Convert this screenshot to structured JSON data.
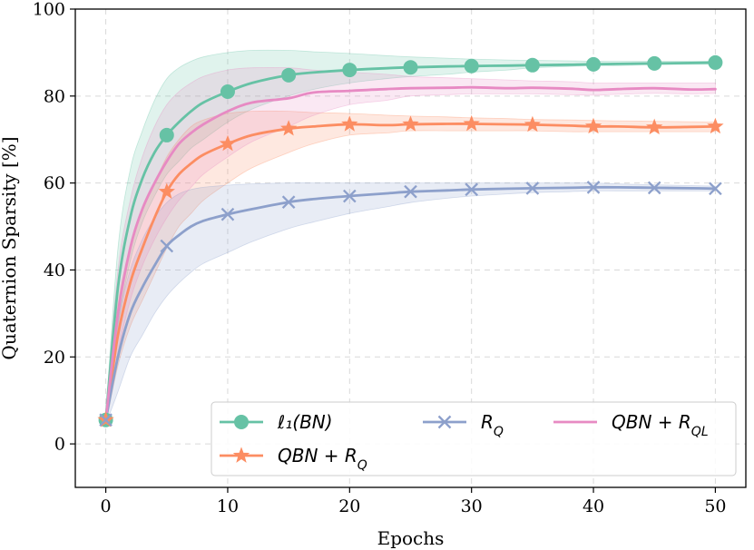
{
  "chart_data": {
    "type": "line",
    "xlabel": "Epochs",
    "ylabel": "Quaternion Sparsity [%]",
    "xlim": [
      -2.5,
      52.5
    ],
    "ylim": [
      -10,
      100
    ],
    "xticks": [
      0,
      10,
      20,
      30,
      40,
      50
    ],
    "yticks": [
      0,
      20,
      40,
      60,
      80,
      100
    ],
    "grid": true,
    "legend_position": "bottom-right",
    "x": [
      0,
      1,
      2,
      3,
      4,
      5,
      6,
      7,
      8,
      10,
      12,
      15,
      17,
      20,
      23,
      25,
      28,
      30,
      33,
      35,
      38,
      40,
      42,
      45,
      48,
      50
    ],
    "series": [
      {
        "name": "ℓ1(BN)",
        "legend_label": "ℓ₁(BN)",
        "color": "#66c2a5",
        "marker": "circle",
        "marker_x": [
          0,
          5,
          10,
          15,
          20,
          25,
          30,
          35,
          40,
          45,
          50
        ],
        "values": [
          5.5,
          36,
          52,
          61,
          67,
          71,
          74,
          76.5,
          78.5,
          81,
          83,
          84.8,
          85.4,
          86,
          86.4,
          86.6,
          86.8,
          86.9,
          87.0,
          87.1,
          87.2,
          87.3,
          87.4,
          87.5,
          87.6,
          87.7
        ],
        "band_low": [
          4.5,
          27,
          42,
          51,
          57,
          62,
          65,
          68,
          70,
          74,
          77,
          80,
          81.5,
          83,
          84,
          84.5,
          85,
          85.5,
          86,
          86.5,
          86.8,
          87,
          87,
          87.2,
          87.3,
          87.3
        ],
        "band_high": [
          6.5,
          45,
          63,
          72,
          79,
          84,
          86.5,
          88,
          89,
          90,
          90.5,
          90.5,
          90.2,
          89.8,
          89.3,
          89,
          88.7,
          88.5,
          88.3,
          88.2,
          88.1,
          88,
          88,
          88,
          88,
          88
        ]
      },
      {
        "name": "QBN + R_Q",
        "legend_label": "QBN + R_Q",
        "color": "#fc8d62",
        "marker": "star",
        "marker_x": [
          0,
          5,
          10,
          15,
          20,
          25,
          30,
          35,
          40,
          45,
          50
        ],
        "values": [
          5.5,
          25,
          37,
          45,
          52,
          58,
          62,
          64.5,
          66.5,
          69,
          71,
          72.5,
          73,
          73.5,
          73.3,
          73.5,
          73.6,
          73.6,
          73.5,
          73.4,
          73.2,
          73.0,
          73.0,
          72.8,
          72.9,
          73.0
        ],
        "band_low": [
          4.5,
          18,
          27,
          33,
          39,
          45,
          50,
          53,
          56,
          60,
          63.5,
          67,
          69,
          71,
          71.5,
          72,
          72,
          72,
          72,
          72,
          71.8,
          71.8,
          71.8,
          71.8,
          71.8,
          71.8
        ],
        "band_high": [
          6.5,
          32,
          45,
          54,
          60,
          66,
          70,
          73,
          74.5,
          76,
          76.5,
          76.5,
          76.2,
          76,
          75.6,
          75.4,
          75.2,
          75,
          74.8,
          74.6,
          74.5,
          74.4,
          74.3,
          74.2,
          74.1,
          74
        ],
        "band_x": [
          0,
          1,
          2,
          3,
          4,
          5,
          6,
          7,
          8,
          10,
          12,
          15,
          17,
          20,
          23,
          25,
          28,
          30,
          33,
          35,
          38,
          40,
          42,
          45,
          48,
          50
        ]
      },
      {
        "name": "R_Q",
        "legend_label": "R_Q",
        "color": "#8da0cb",
        "marker": "x",
        "marker_x": [
          0,
          5,
          10,
          15,
          20,
          25,
          30,
          35,
          40,
          45,
          50
        ],
        "values": [
          5.5,
          20,
          30,
          36,
          41,
          45.5,
          48,
          50,
          51.3,
          52.8,
          54,
          55.6,
          56.3,
          57.0,
          57.6,
          58.0,
          58.3,
          58.5,
          58.7,
          58.8,
          58.9,
          59.0,
          59.0,
          58.9,
          58.8,
          58.7
        ],
        "band_low": [
          4.5,
          12,
          20,
          25,
          30,
          34,
          37,
          39.5,
          41.5,
          44,
          46.5,
          49.5,
          51,
          53,
          54.5,
          55.5,
          56.5,
          57,
          57.5,
          57.8,
          58,
          58.2,
          58.2,
          58.2,
          58.2,
          58.2
        ],
        "band_high": [
          6.5,
          28,
          40,
          47,
          52,
          55.5,
          57.5,
          58.5,
          59,
          59.5,
          59.8,
          60,
          60,
          60,
          60,
          60,
          60,
          60,
          60,
          60,
          60,
          60,
          59.8,
          59.6,
          59.4,
          59.3
        ]
      },
      {
        "name": "QBN + R_QL",
        "legend_label": "QBN + R_QL",
        "color": "#e78ac3",
        "marker": "none",
        "marker_x": [],
        "values": [
          5.5,
          30,
          45,
          54,
          60,
          65,
          69,
          71.5,
          73.5,
          76.5,
          78.5,
          79.5,
          80.8,
          81.2,
          81.6,
          81.8,
          81.9,
          82.0,
          81.8,
          81.9,
          81.7,
          81.4,
          81.6,
          81.8,
          81.5,
          81.6
        ],
        "band_low": [
          4.5,
          21,
          33,
          41,
          47,
          52,
          56,
          59,
          62,
          66,
          69.5,
          73,
          75.5,
          78,
          79,
          80,
          80.3,
          80.5,
          80.5,
          80.5,
          80.3,
          80.2,
          80.4,
          80.6,
          80.5,
          80.6
        ],
        "band_high": [
          6.5,
          40,
          56,
          66,
          73,
          78,
          81,
          83,
          84.5,
          86,
          86.5,
          86.5,
          86,
          85.5,
          85,
          84.5,
          84.2,
          84,
          83.7,
          83.5,
          83.3,
          83,
          83,
          83,
          83,
          83
        ]
      }
    ]
  }
}
